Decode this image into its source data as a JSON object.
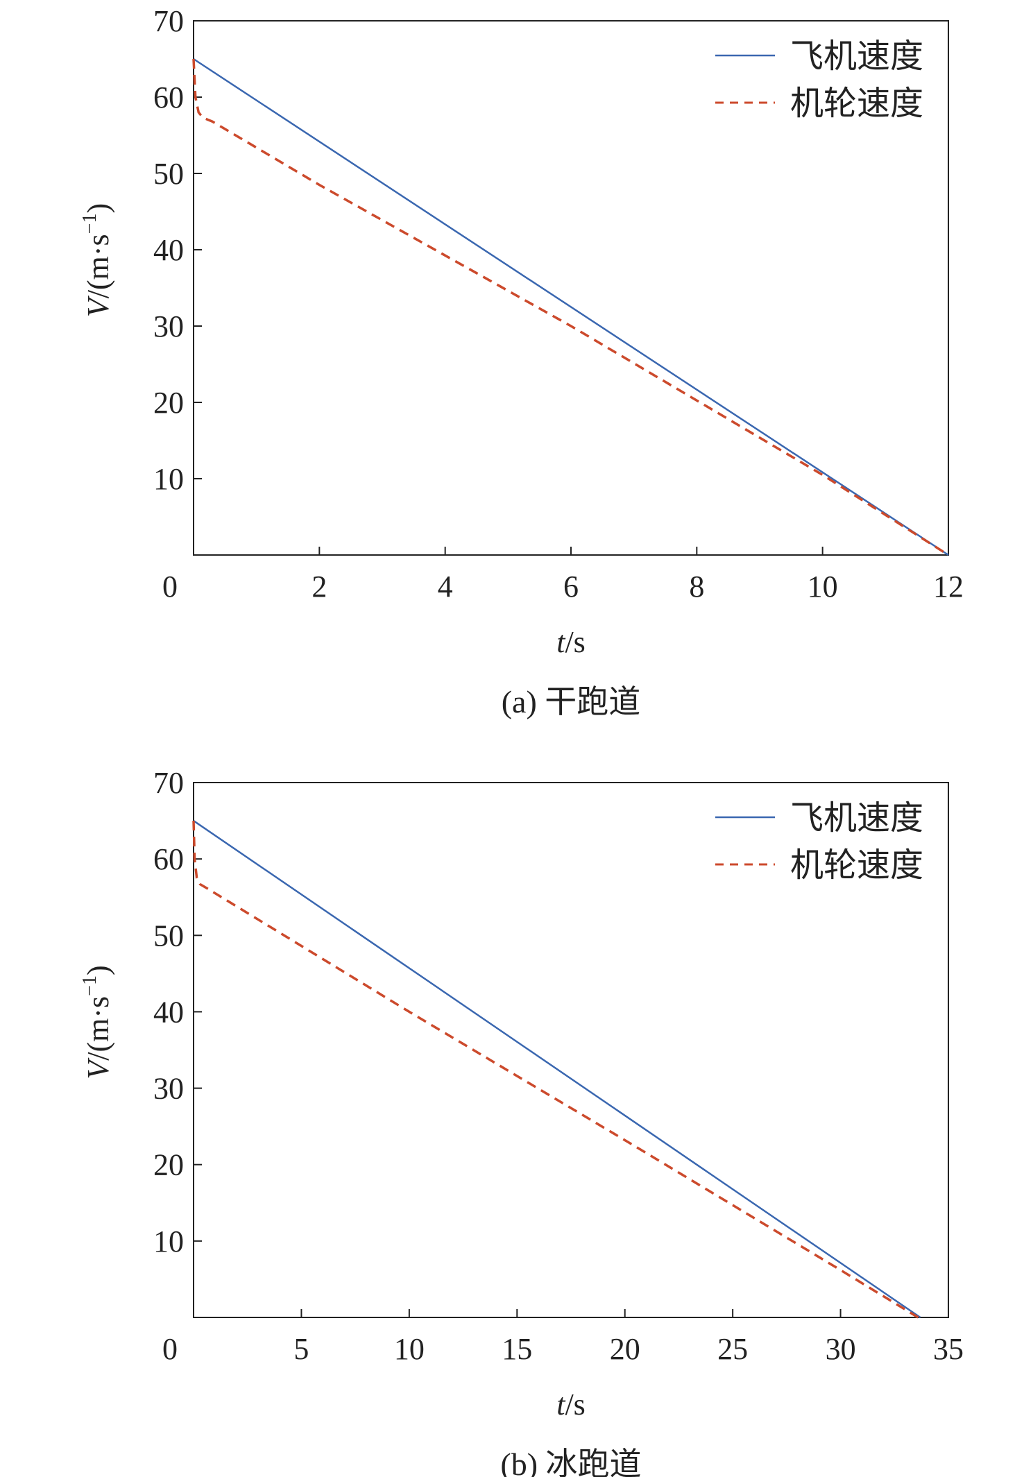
{
  "chart_data": [
    {
      "type": "line",
      "caption": "(a) 干跑道",
      "xlabel_italic": "t",
      "xlabel_unit": "/s",
      "ylabel_italic": "V",
      "ylabel_unit": "/(m·s",
      "ylabel_sup": "−1",
      "ylabel_close": ")",
      "xlim": [
        0,
        12
      ],
      "ylim": [
        0,
        70
      ],
      "xticks": [
        0,
        2,
        4,
        6,
        8,
        10,
        12
      ],
      "yticks": [
        10,
        20,
        30,
        40,
        50,
        60,
        70
      ],
      "legend_position": "top-right",
      "series": [
        {
          "name": "飞机速度",
          "style": "solid",
          "color": "#3a67b0",
          "x": [
            0,
            12
          ],
          "y": [
            65,
            0
          ]
        },
        {
          "name": "机轮速度",
          "style": "dashed",
          "color": "#cc4a2c",
          "x": [
            0,
            0.03,
            0.08,
            0.15,
            0.3,
            2,
            6,
            10,
            12
          ],
          "y": [
            65,
            60,
            58,
            57.3,
            56.8,
            48.5,
            30,
            10.5,
            0
          ]
        }
      ]
    },
    {
      "type": "line",
      "caption": "(b) 冰跑道",
      "xlabel_italic": "t",
      "xlabel_unit": "/s",
      "ylabel_italic": "V",
      "ylabel_unit": "/(m·s",
      "ylabel_sup": "−1",
      "ylabel_close": ")",
      "xlim": [
        0,
        35
      ],
      "ylim": [
        0,
        70
      ],
      "xticks": [
        0,
        5,
        10,
        15,
        20,
        25,
        30,
        35
      ],
      "yticks": [
        10,
        20,
        30,
        40,
        50,
        60,
        70
      ],
      "legend_position": "top-right",
      "series": [
        {
          "name": "飞机速度",
          "style": "solid",
          "color": "#3a67b0",
          "x": [
            0,
            33.7
          ],
          "y": [
            65,
            0
          ]
        },
        {
          "name": "机轮速度",
          "style": "dashed",
          "color": "#cc4a2c",
          "x": [
            0,
            0.05,
            0.15,
            0.3,
            0.6,
            10,
            20,
            30,
            33.6
          ],
          "y": [
            65,
            60,
            57.5,
            56.7,
            56.2,
            40,
            23.2,
            6.2,
            0
          ]
        }
      ]
    }
  ]
}
